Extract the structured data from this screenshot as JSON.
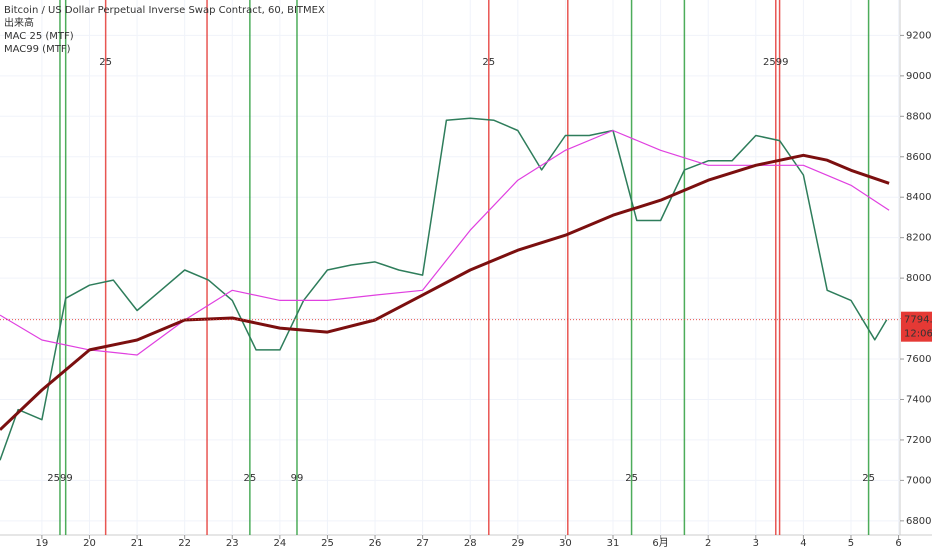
{
  "chart_data": {
    "type": "line",
    "title": "Bitcoin / US Dollar Perpetual Inverse Swap Contract, 60, BITMEX",
    "indicators": [
      "出来高",
      "MAC 25 (MTF)",
      "MAC99 (MTF)"
    ],
    "xlim": [
      -0.88,
      18.03
    ],
    "xticks": [
      {
        "value": 0,
        "label": "19"
      },
      {
        "value": 1,
        "label": "20"
      },
      {
        "value": 2,
        "label": "21"
      },
      {
        "value": 3,
        "label": "22"
      },
      {
        "value": 4,
        "label": "23"
      },
      {
        "value": 5,
        "label": "24"
      },
      {
        "value": 6,
        "label": "25"
      },
      {
        "value": 7,
        "label": "26"
      },
      {
        "value": 8,
        "label": "27"
      },
      {
        "value": 9,
        "label": "28"
      },
      {
        "value": 10,
        "label": "29"
      },
      {
        "value": 11,
        "label": "30"
      },
      {
        "value": 12,
        "label": "31"
      },
      {
        "value": 13,
        "label": "6月"
      },
      {
        "value": 14,
        "label": "2"
      },
      {
        "value": 15,
        "label": "3"
      },
      {
        "value": 16,
        "label": "4"
      },
      {
        "value": 17,
        "label": "5"
      },
      {
        "value": 18,
        "label": "6"
      }
    ],
    "ylim": [
      6730,
      9375
    ],
    "yticks": [
      {
        "value": 6800,
        "label": "6800.0"
      },
      {
        "value": 7000,
        "label": "7000.0"
      },
      {
        "value": 7200,
        "label": "7200.0"
      },
      {
        "value": 7400,
        "label": "7400.0"
      },
      {
        "value": 7600,
        "label": "7600.0"
      },
      {
        "value": 7800,
        "label": "7800.0"
      },
      {
        "value": 8000,
        "label": "8000.0"
      },
      {
        "value": 8200,
        "label": "8200.0"
      },
      {
        "value": 8400,
        "label": "8400.0"
      },
      {
        "value": 8600,
        "label": "8600.0"
      },
      {
        "value": 8800,
        "label": "8800.0"
      },
      {
        "value": 9000,
        "label": "9000.0"
      },
      {
        "value": 9200,
        "label": "9200.0"
      }
    ],
    "series": [
      {
        "name": "Price",
        "color": "#2e7d5b",
        "width": 1.5,
        "x": [
          -0.88,
          -0.5,
          0,
          0.5,
          1,
          1.5,
          2,
          2.5,
          3,
          3.5,
          4,
          4.5,
          5,
          5.5,
          6,
          6.5,
          7,
          7.5,
          8,
          8.5,
          9,
          9.5,
          10,
          10.5,
          11,
          11.5,
          12,
          12.5,
          13,
          13.5,
          14,
          14.5,
          15,
          15.5,
          16,
          16.5,
          17,
          17.5,
          17.75
        ],
        "values": [
          7100,
          7350,
          7300,
          7900,
          7965,
          7990,
          7840,
          7940,
          8040,
          7990,
          7890,
          7645,
          7645,
          7890,
          8040,
          8065,
          8080,
          8040,
          8015,
          8780,
          8790,
          8780,
          8730,
          8535,
          8705,
          8705,
          8730,
          8285,
          8285,
          8535,
          8580,
          8580,
          8705,
          8680,
          8510,
          7940,
          7890,
          7695,
          7794.5
        ]
      },
      {
        "name": "MA",
        "color": "#e040e0",
        "width": 1.2,
        "x": [
          -0.88,
          0,
          1,
          2,
          3,
          4,
          5,
          6,
          7,
          8,
          9,
          10,
          11,
          12,
          13,
          14,
          15,
          16,
          17,
          17.8
        ],
        "values": [
          7817,
          7694,
          7645,
          7620,
          7793,
          7940,
          7890,
          7890,
          7916,
          7940,
          8237,
          8484,
          8632,
          8730,
          8632,
          8558,
          8558,
          8558,
          8459,
          8336
        ]
      },
      {
        "name": "MA long",
        "color": "#7b0f0f",
        "width": 3,
        "x": [
          -0.88,
          0,
          1,
          2,
          3,
          4,
          5,
          6,
          7,
          8,
          9,
          10,
          11,
          12,
          13,
          14,
          15,
          16,
          16.5,
          17,
          17.8
        ],
        "values": [
          7250,
          7447,
          7645,
          7694,
          7793,
          7803,
          7753,
          7733,
          7793,
          7916,
          8040,
          8138,
          8212,
          8311,
          8385,
          8484,
          8558,
          8607,
          8583,
          8533,
          8469
        ]
      }
    ],
    "events": [
      {
        "x": 0.38,
        "color": "#2e9e3e",
        "label": "2599"
      },
      {
        "x": 0.5,
        "color": "#2e9e3e"
      },
      {
        "x": 1.34,
        "color": "#e53935",
        "label": "25"
      },
      {
        "x": 3.47,
        "color": "#e53935"
      },
      {
        "x": 4.37,
        "color": "#2e9e3e",
        "label": "25"
      },
      {
        "x": 5.36,
        "color": "#2e9e3e",
        "label": "99"
      },
      {
        "x": 9.39,
        "color": "#e53935",
        "label": "25"
      },
      {
        "x": 11.05,
        "color": "#e53935"
      },
      {
        "x": 12.39,
        "color": "#2e9e3e",
        "label": "25"
      },
      {
        "x": 13.5,
        "color": "#2e9e3e"
      },
      {
        "x": 15.42,
        "color": "#e53935",
        "label": "2599"
      },
      {
        "x": 15.5,
        "color": "#e53935"
      },
      {
        "x": 17.37,
        "color": "#2e9e3e",
        "label": "25"
      }
    ],
    "last_price": 7794.5,
    "last_price_label": "7794.5",
    "countdown": "12:06"
  }
}
